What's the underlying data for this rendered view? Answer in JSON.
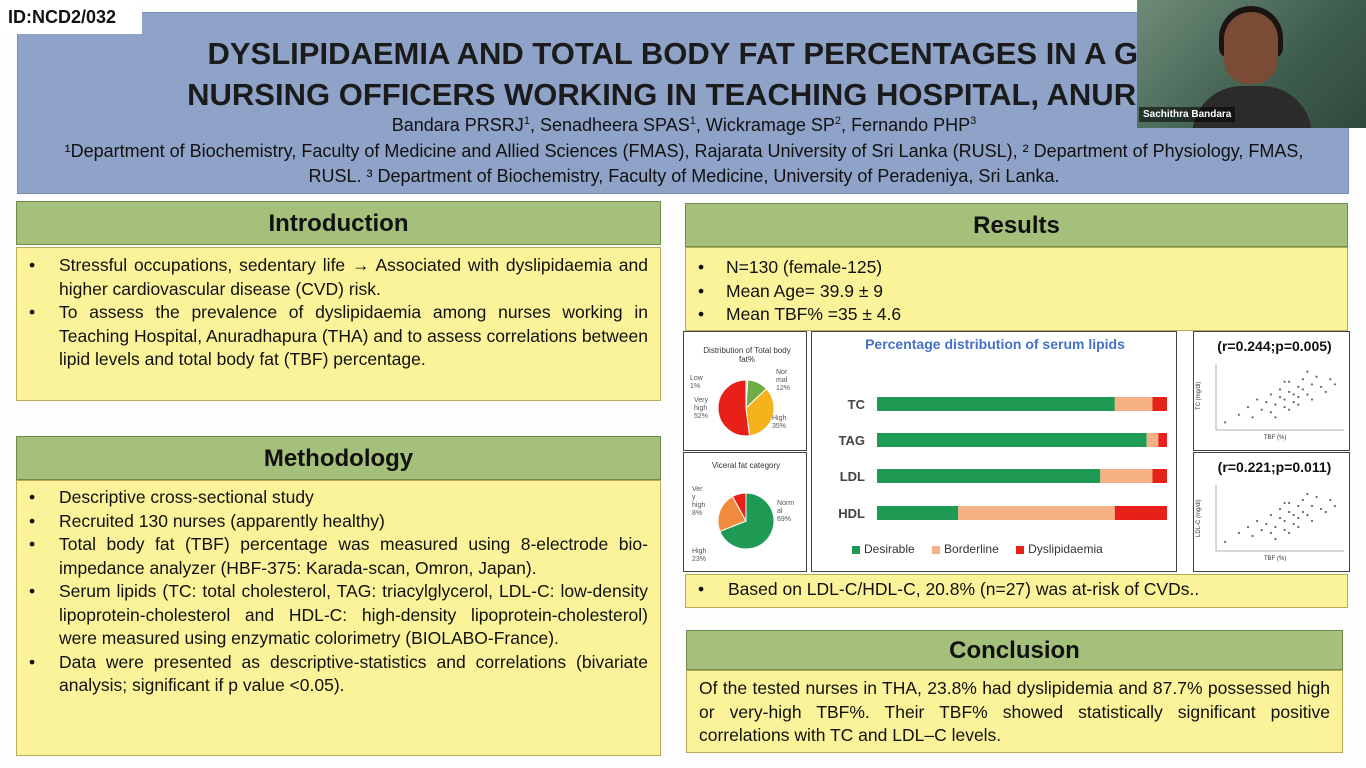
{
  "poster_id": "ID:NCD2/032",
  "header": {
    "title_line1": "DYSLIPIDAEMIA AND TOTAL BODY FAT PERCENTAGES IN A GR",
    "title_line2": "NURSING OFFICERS WORKING IN TEACHING HOSPITAL, ANURAD",
    "authors": [
      {
        "name": "Bandara PRSRJ",
        "sup": "1"
      },
      {
        "name": "Senadheera SPAS",
        "sup": "1"
      },
      {
        "name": "Wickramage SP",
        "sup": "2"
      },
      {
        "name": "Fernando PHP",
        "sup": "3"
      }
    ],
    "affiliations": "¹Department of Biochemistry, Faculty of Medicine and Allied Sciences (FMAS), Rajarata University of Sri Lanka (RUSL), ² Department of Physiology, FMAS, RUSL. ³ Department of Biochemistry, Faculty of Medicine, University of Peradeniya, Sri Lanka."
  },
  "webcam": {
    "name": "Sachithra Bandara"
  },
  "introduction": {
    "heading": "Introduction",
    "bullets": [
      "Stressful occupations, sedentary life → Associated with dyslipidaemia and higher cardiovascular disease (CVD) risk.",
      "To assess the prevalence of dyslipidaemia among nurses working in Teaching Hospital, Anuradhapura (THA) and to assess correlations between lipid levels and total body fat (TBF) percentage."
    ]
  },
  "methodology": {
    "heading": "Methodology",
    "bullets": [
      "Descriptive cross-sectional study",
      "Recruited 130 nurses (apparently healthy)",
      "Total body fat (TBF) percentage was measured using 8-electrode bio-impedance analyzer (HBF-375: Karada-scan, Omron, Japan).",
      "Serum lipids (TC: total cholesterol, TAG: triacylglycerol, LDL-C: low-density lipoprotein-cholesterol and HDL-C: high-density lipoprotein-cholesterol) were measured using enzymatic colorimetry (BIOLABO-France).",
      "Data were presented as descriptive-statistics and correlations (bivariate analysis; significant if p value <0.05)."
    ]
  },
  "results": {
    "heading": "Results",
    "bullets": [
      "N=130 (female-125)",
      "Mean Age= 39.9 ± 9",
      "Mean TBF% =35 ±  4.6"
    ],
    "note": "Based on LDL-C/HDL-C, 20.8% (n=27) was at-risk of CVDs.."
  },
  "conclusion": {
    "heading": "Conclusion",
    "text": "Of the tested nurses in THA, 23.8% had dyslipidemia and 87.7% possessed high or very-high TBF%. Their TBF% showed statistically significant positive correlations with TC and LDL–C levels."
  },
  "colors": {
    "desirable": "#1e9a55",
    "borderline": "#f4b183",
    "dyslipidaemia": "#e8201a",
    "pie_low": "#bfbfbf",
    "pie_normal": "#70ad47",
    "pie_high": "#f5b21b",
    "pie_very_high": "#e8201a",
    "visceral_normal": "#1e9a55",
    "visceral_high": "#f08a3c",
    "visceral_very_high": "#e8201a"
  },
  "chart_data": [
    {
      "type": "pie",
      "title": "Distribution of Total body fat%",
      "labels": [
        "Low",
        "Normal",
        "High",
        "Very high"
      ],
      "values": [
        1,
        12,
        35,
        52
      ],
      "slice_text": [
        "Low\n1%",
        "Nor\nmal\n12%",
        "High\n35%",
        "Very\nhigh\n52%"
      ]
    },
    {
      "type": "pie",
      "title": "Viceral fat category",
      "labels": [
        "Normal",
        "High",
        "Very high"
      ],
      "values": [
        69,
        23,
        8
      ],
      "slice_text": [
        "Norm\nal\n69%",
        "High\n23%",
        "Ver\ny\nhigh\n8%"
      ]
    },
    {
      "type": "bar",
      "orientation": "horizontal",
      "stacked": true,
      "title": "Percentage distribution of serum lipids",
      "categories": [
        "TC",
        "TAG",
        "LDL",
        "HDL"
      ],
      "series": [
        {
          "name": "Desirable",
          "values": [
            82,
            93,
            77,
            28
          ]
        },
        {
          "name": "Borderline",
          "values": [
            13,
            4,
            18,
            54
          ]
        },
        {
          "name": "Dyslipidaemia",
          "values": [
            5,
            3,
            5,
            18
          ]
        }
      ],
      "xlim": [
        0,
        100
      ],
      "legend": "bottom"
    },
    {
      "type": "scatter",
      "title": "(r=0.244;p=0.005)",
      "xlabel": "TBF (%)",
      "ylabel": "TC (mg/dl)",
      "points": [
        [
          22,
          160
        ],
        [
          25,
          175
        ],
        [
          27,
          190
        ],
        [
          28,
          170
        ],
        [
          29,
          205
        ],
        [
          30,
          185
        ],
        [
          31,
          200
        ],
        [
          32,
          215
        ],
        [
          32,
          180
        ],
        [
          33,
          195
        ],
        [
          34,
          210
        ],
        [
          34,
          225
        ],
        [
          35,
          190
        ],
        [
          35,
          205
        ],
        [
          36,
          220
        ],
        [
          36,
          240
        ],
        [
          37,
          200
        ],
        [
          37,
          215
        ],
        [
          38,
          230
        ],
        [
          38,
          210
        ],
        [
          39,
          225
        ],
        [
          39,
          245
        ],
        [
          40,
          215
        ],
        [
          41,
          235
        ],
        [
          41,
          205
        ],
        [
          42,
          250
        ],
        [
          43,
          230
        ],
        [
          44,
          220
        ],
        [
          45,
          245
        ],
        [
          46,
          235
        ],
        [
          33,
          170
        ],
        [
          36,
          185
        ],
        [
          38,
          195
        ],
        [
          40,
          260
        ],
        [
          35,
          240
        ]
      ]
    },
    {
      "type": "scatter",
      "title": "(r=0.221;p=0.011)",
      "xlabel": "TBF (%)",
      "ylabel": "LDL-C (mg/dl)",
      "points": [
        [
          22,
          100
        ],
        [
          25,
          115
        ],
        [
          27,
          125
        ],
        [
          28,
          110
        ],
        [
          29,
          135
        ],
        [
          30,
          120
        ],
        [
          31,
          130
        ],
        [
          32,
          145
        ],
        [
          32,
          115
        ],
        [
          33,
          125
        ],
        [
          34,
          140
        ],
        [
          34,
          155
        ],
        [
          35,
          120
        ],
        [
          35,
          135
        ],
        [
          36,
          150
        ],
        [
          36,
          165
        ],
        [
          37,
          130
        ],
        [
          37,
          145
        ],
        [
          38,
          160
        ],
        [
          38,
          140
        ],
        [
          39,
          150
        ],
        [
          39,
          170
        ],
        [
          40,
          145
        ],
        [
          41,
          160
        ],
        [
          41,
          135
        ],
        [
          42,
          175
        ],
        [
          43,
          155
        ],
        [
          44,
          150
        ],
        [
          45,
          170
        ],
        [
          46,
          160
        ],
        [
          33,
          105
        ],
        [
          36,
          115
        ],
        [
          38,
          125
        ],
        [
          40,
          180
        ],
        [
          35,
          165
        ]
      ]
    }
  ]
}
